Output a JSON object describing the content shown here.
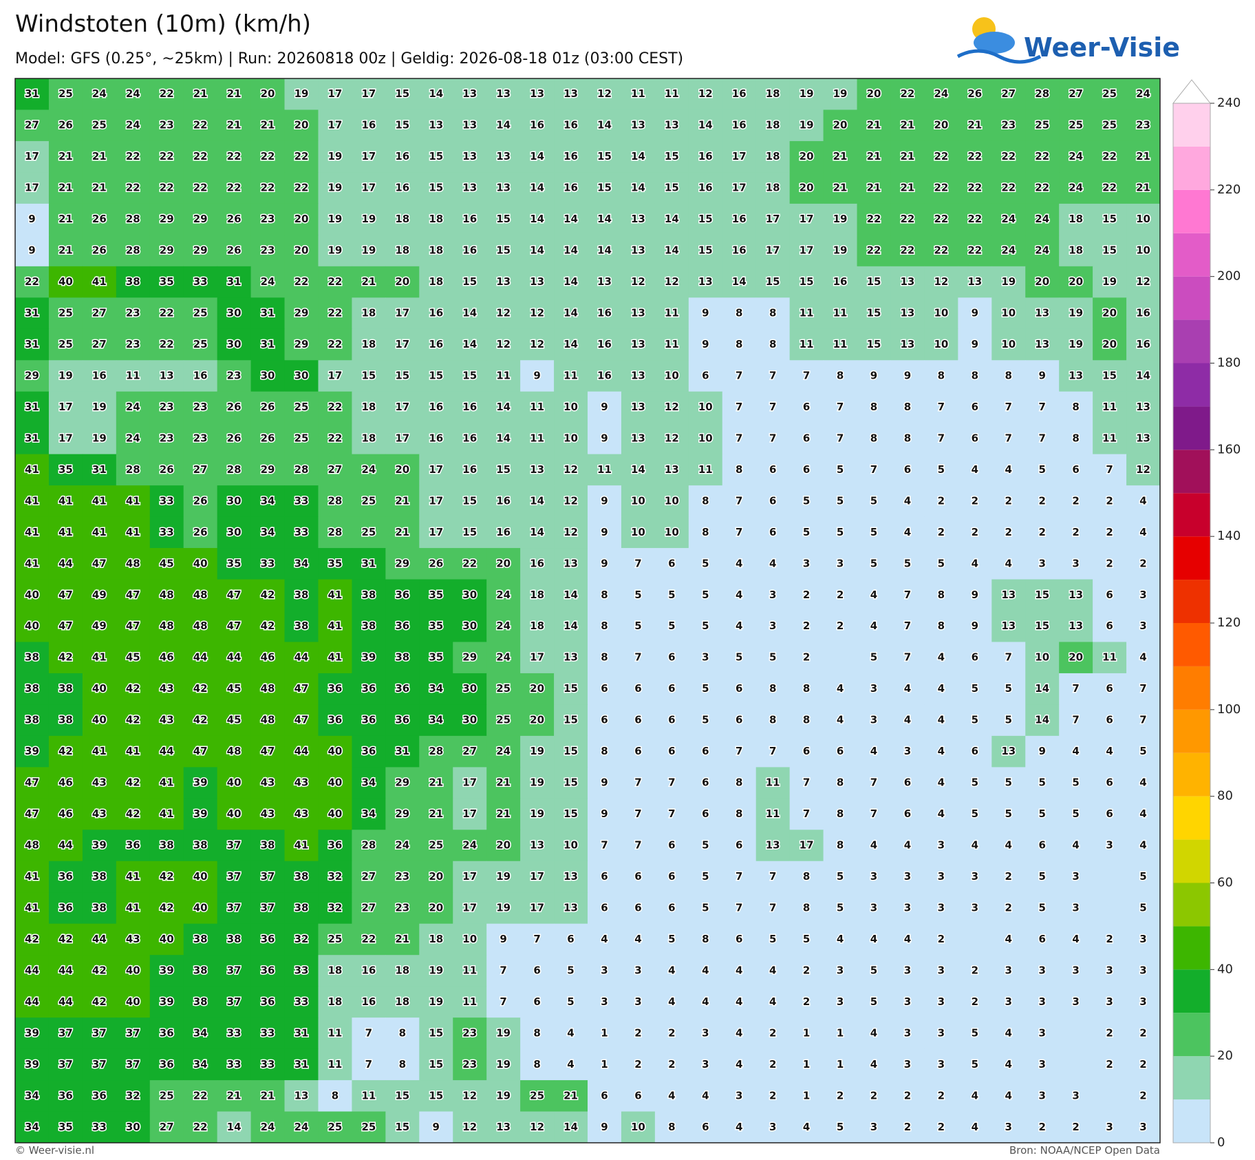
{
  "header": {
    "title": "Windstoten (10m) (km/h)",
    "subtitle": "Model: GFS (0.25°, ~25km)  |  Run: 20260818 00z  |  Geldig: 2026-08-18 01z (03:00 CEST)"
  },
  "logo": "Weer-Visie",
  "grid": {
    "rows": [
      [
        31,
        25,
        24,
        24,
        22,
        21,
        21,
        20,
        19,
        17,
        17,
        15,
        14,
        13,
        13,
        13,
        13,
        12,
        11,
        11,
        12,
        16,
        18,
        19,
        19,
        20,
        22,
        24,
        26,
        27,
        28,
        27,
        25,
        24
      ],
      [
        27,
        26,
        25,
        24,
        23,
        22,
        21,
        21,
        20,
        17,
        16,
        15,
        13,
        13,
        14,
        16,
        16,
        14,
        13,
        13,
        14,
        16,
        18,
        19,
        20,
        21,
        21,
        20,
        21,
        23,
        25,
        25,
        25,
        23
      ],
      [
        17,
        21,
        21,
        22,
        22,
        22,
        22,
        22,
        22,
        19,
        17,
        16,
        15,
        13,
        13,
        14,
        16,
        15,
        14,
        15,
        16,
        17,
        18,
        20,
        21,
        21,
        21,
        22,
        22,
        22,
        22,
        24,
        22,
        21
      ],
      [
        17,
        21,
        21,
        22,
        22,
        22,
        22,
        22,
        22,
        19,
        17,
        16,
        15,
        13,
        13,
        14,
        16,
        15,
        14,
        15,
        16,
        17,
        18,
        20,
        21,
        21,
        21,
        22,
        22,
        22,
        22,
        24,
        22,
        21
      ],
      [
        9,
        21,
        26,
        28,
        29,
        29,
        26,
        23,
        20,
        19,
        19,
        18,
        18,
        16,
        15,
        14,
        14,
        14,
        13,
        14,
        15,
        16,
        17,
        17,
        19,
        22,
        22,
        22,
        22,
        24,
        24,
        18,
        15,
        10
      ],
      [
        9,
        21,
        26,
        28,
        29,
        29,
        26,
        23,
        20,
        19,
        19,
        18,
        18,
        16,
        15,
        14,
        14,
        14,
        13,
        14,
        15,
        16,
        17,
        17,
        19,
        22,
        22,
        22,
        22,
        24,
        24,
        18,
        15,
        10
      ],
      [
        22,
        40,
        41,
        38,
        35,
        33,
        31,
        24,
        22,
        22,
        21,
        20,
        18,
        15,
        13,
        13,
        14,
        13,
        12,
        12,
        13,
        14,
        15,
        15,
        16,
        15,
        13,
        12,
        13,
        19,
        20,
        20,
        19,
        12
      ],
      [
        31,
        25,
        27,
        23,
        22,
        25,
        30,
        31,
        29,
        22,
        18,
        17,
        16,
        14,
        12,
        12,
        14,
        16,
        13,
        11,
        9,
        8,
        8,
        11,
        11,
        15,
        13,
        10,
        9,
        10,
        13,
        19,
        20,
        16
      ],
      [
        31,
        25,
        27,
        23,
        22,
        25,
        30,
        31,
        29,
        22,
        18,
        17,
        16,
        14,
        12,
        12,
        14,
        16,
        13,
        11,
        9,
        8,
        8,
        11,
        11,
        15,
        13,
        10,
        9,
        10,
        13,
        19,
        20,
        16
      ],
      [
        29,
        19,
        16,
        11,
        13,
        16,
        23,
        30,
        30,
        17,
        15,
        15,
        15,
        15,
        11,
        9,
        11,
        16,
        13,
        10,
        6,
        7,
        7,
        7,
        8,
        9,
        9,
        8,
        8,
        8,
        9,
        13,
        15,
        14
      ],
      [
        31,
        17,
        19,
        24,
        23,
        23,
        26,
        26,
        25,
        22,
        18,
        17,
        16,
        16,
        14,
        11,
        10,
        9,
        13,
        12,
        10,
        7,
        7,
        6,
        7,
        8,
        8,
        7,
        6,
        7,
        7,
        8,
        11,
        13
      ],
      [
        31,
        17,
        19,
        24,
        23,
        23,
        26,
        26,
        25,
        22,
        18,
        17,
        16,
        16,
        14,
        11,
        10,
        9,
        13,
        12,
        10,
        7,
        7,
        6,
        7,
        8,
        8,
        7,
        6,
        7,
        7,
        8,
        11,
        13
      ],
      [
        41,
        35,
        31,
        28,
        26,
        27,
        28,
        29,
        28,
        27,
        24,
        20,
        17,
        16,
        15,
        13,
        12,
        11,
        14,
        13,
        11,
        8,
        6,
        6,
        5,
        7,
        6,
        5,
        4,
        4,
        5,
        6,
        7,
        12
      ],
      [
        41,
        41,
        41,
        41,
        33,
        26,
        30,
        34,
        33,
        28,
        25,
        21,
        17,
        15,
        16,
        14,
        12,
        9,
        10,
        10,
        8,
        7,
        6,
        5,
        5,
        5,
        4,
        2,
        2,
        2,
        2,
        2,
        2,
        4
      ],
      [
        41,
        41,
        41,
        41,
        33,
        26,
        30,
        34,
        33,
        28,
        25,
        21,
        17,
        15,
        16,
        14,
        12,
        9,
        10,
        10,
        8,
        7,
        6,
        5,
        5,
        5,
        4,
        2,
        2,
        2,
        2,
        2,
        2,
        4
      ],
      [
        41,
        44,
        47,
        48,
        45,
        40,
        35,
        33,
        34,
        35,
        31,
        29,
        26,
        22,
        20,
        16,
        13,
        9,
        7,
        6,
        5,
        4,
        4,
        3,
        3,
        5,
        5,
        5,
        4,
        4,
        3,
        3,
        2,
        2
      ],
      [
        40,
        47,
        49,
        47,
        48,
        48,
        47,
        42,
        38,
        41,
        38,
        36,
        35,
        30,
        24,
        18,
        14,
        8,
        5,
        5,
        5,
        4,
        3,
        2,
        2,
        4,
        7,
        8,
        9,
        13,
        15,
        13,
        6,
        3
      ],
      [
        40,
        47,
        49,
        47,
        48,
        48,
        47,
        42,
        38,
        41,
        38,
        36,
        35,
        30,
        24,
        18,
        14,
        8,
        5,
        5,
        5,
        4,
        3,
        2,
        2,
        4,
        7,
        8,
        9,
        13,
        15,
        13,
        6,
        3
      ],
      [
        38,
        42,
        41,
        45,
        46,
        44,
        44,
        46,
        44,
        41,
        39,
        38,
        35,
        29,
        24,
        17,
        13,
        8,
        7,
        6,
        3,
        5,
        5,
        2,
        null,
        5,
        7,
        4,
        6,
        7,
        10,
        20,
        11,
        4
      ],
      [
        38,
        38,
        40,
        42,
        43,
        42,
        45,
        48,
        47,
        36,
        36,
        36,
        34,
        30,
        25,
        20,
        15,
        6,
        6,
        6,
        5,
        6,
        8,
        8,
        4,
        3,
        4,
        4,
        5,
        5,
        14,
        7,
        6,
        7
      ],
      [
        38,
        38,
        40,
        42,
        43,
        42,
        45,
        48,
        47,
        36,
        36,
        36,
        34,
        30,
        25,
        20,
        15,
        6,
        6,
        6,
        5,
        6,
        8,
        8,
        4,
        3,
        4,
        4,
        5,
        5,
        14,
        7,
        6,
        7
      ],
      [
        39,
        42,
        41,
        41,
        44,
        47,
        48,
        47,
        44,
        40,
        36,
        31,
        28,
        27,
        24,
        19,
        15,
        8,
        6,
        6,
        6,
        7,
        7,
        6,
        6,
        4,
        3,
        4,
        6,
        13,
        9,
        4,
        4,
        5
      ],
      [
        47,
        46,
        43,
        42,
        41,
        39,
        40,
        43,
        43,
        40,
        34,
        29,
        21,
        17,
        21,
        19,
        15,
        9,
        7,
        7,
        6,
        8,
        11,
        7,
        8,
        7,
        6,
        4,
        5,
        5,
        5,
        5,
        6,
        4
      ],
      [
        47,
        46,
        43,
        42,
        41,
        39,
        40,
        43,
        43,
        40,
        34,
        29,
        21,
        17,
        21,
        19,
        15,
        9,
        7,
        7,
        6,
        8,
        11,
        7,
        8,
        7,
        6,
        4,
        5,
        5,
        5,
        5,
        6,
        4
      ],
      [
        48,
        44,
        39,
        36,
        38,
        38,
        37,
        38,
        41,
        36,
        28,
        24,
        25,
        24,
        20,
        13,
        10,
        7,
        7,
        6,
        5,
        6,
        13,
        17,
        8,
        4,
        4,
        3,
        4,
        4,
        6,
        4,
        3,
        4
      ],
      [
        41,
        36,
        38,
        41,
        42,
        40,
        37,
        37,
        38,
        32,
        27,
        23,
        20,
        17,
        19,
        17,
        13,
        6,
        6,
        6,
        5,
        7,
        7,
        8,
        5,
        3,
        3,
        3,
        3,
        2,
        5,
        3,
        null,
        5
      ],
      [
        41,
        36,
        38,
        41,
        42,
        40,
        37,
        37,
        38,
        32,
        27,
        23,
        20,
        17,
        19,
        17,
        13,
        6,
        6,
        6,
        5,
        7,
        7,
        8,
        5,
        3,
        3,
        3,
        3,
        2,
        5,
        3,
        null,
        5
      ],
      [
        42,
        42,
        44,
        43,
        40,
        38,
        38,
        36,
        32,
        25,
        22,
        21,
        18,
        10,
        9,
        7,
        6,
        4,
        4,
        5,
        8,
        6,
        5,
        5,
        4,
        4,
        4,
        2,
        null,
        4,
        6,
        4,
        2,
        3
      ],
      [
        44,
        44,
        42,
        40,
        39,
        38,
        37,
        36,
        33,
        18,
        16,
        18,
        19,
        11,
        7,
        6,
        5,
        3,
        3,
        4,
        4,
        4,
        4,
        2,
        3,
        5,
        3,
        3,
        2,
        3,
        3,
        3,
        3,
        3
      ],
      [
        44,
        44,
        42,
        40,
        39,
        38,
        37,
        36,
        33,
        18,
        16,
        18,
        19,
        11,
        7,
        6,
        5,
        3,
        3,
        4,
        4,
        4,
        4,
        2,
        3,
        5,
        3,
        3,
        2,
        3,
        3,
        3,
        3,
        3
      ],
      [
        39,
        37,
        37,
        37,
        36,
        34,
        33,
        33,
        31,
        11,
        7,
        8,
        15,
        23,
        19,
        8,
        4,
        1,
        2,
        2,
        3,
        4,
        2,
        1,
        1,
        4,
        3,
        3,
        5,
        4,
        3,
        null,
        2,
        2
      ],
      [
        39,
        37,
        37,
        37,
        36,
        34,
        33,
        33,
        31,
        11,
        7,
        8,
        15,
        23,
        19,
        8,
        4,
        1,
        2,
        2,
        3,
        4,
        2,
        1,
        1,
        4,
        3,
        3,
        5,
        4,
        3,
        null,
        2,
        2
      ],
      [
        34,
        36,
        36,
        32,
        25,
        22,
        21,
        21,
        13,
        8,
        11,
        15,
        15,
        12,
        19,
        25,
        21,
        6,
        6,
        4,
        4,
        3,
        2,
        1,
        2,
        2,
        2,
        2,
        4,
        4,
        3,
        3,
        null,
        2
      ],
      [
        34,
        35,
        33,
        30,
        27,
        22,
        14,
        24,
        24,
        25,
        25,
        15,
        9,
        12,
        13,
        12,
        14,
        9,
        10,
        8,
        6,
        4,
        3,
        4,
        5,
        3,
        2,
        2,
        4,
        3,
        2,
        2,
        3,
        3
      ]
    ]
  },
  "colorbar": {
    "levels": [
      0,
      10,
      20,
      30,
      40,
      50,
      60,
      70,
      80,
      90,
      100,
      110,
      120,
      130,
      140,
      150,
      160,
      170,
      180,
      190,
      200,
      210,
      220,
      230,
      240
    ],
    "colors": [
      "#c8e4f9",
      "#8fd6b1",
      "#4cc45f",
      "#13ae2b",
      "#3db600",
      "#8cc700",
      "#d1d600",
      "#ffd500",
      "#ffb300",
      "#ff9800",
      "#ff7d00",
      "#ff5a00",
      "#ee3100",
      "#e60000",
      "#c8002c",
      "#a1105a",
      "#7f1a8a",
      "#8e2ca6",
      "#a93fb1",
      "#cb4cbf",
      "#e35cc8",
      "#ff78d2",
      "#ffa8de",
      "#ffd0ec"
    ],
    "ticks": [
      0,
      20,
      40,
      60,
      80,
      100,
      120,
      140,
      160,
      180,
      200,
      220,
      240
    ]
  },
  "footer": {
    "left": "© Weer-visie.nl",
    "right": "Bron: NOAA/NCEP Open Data"
  }
}
